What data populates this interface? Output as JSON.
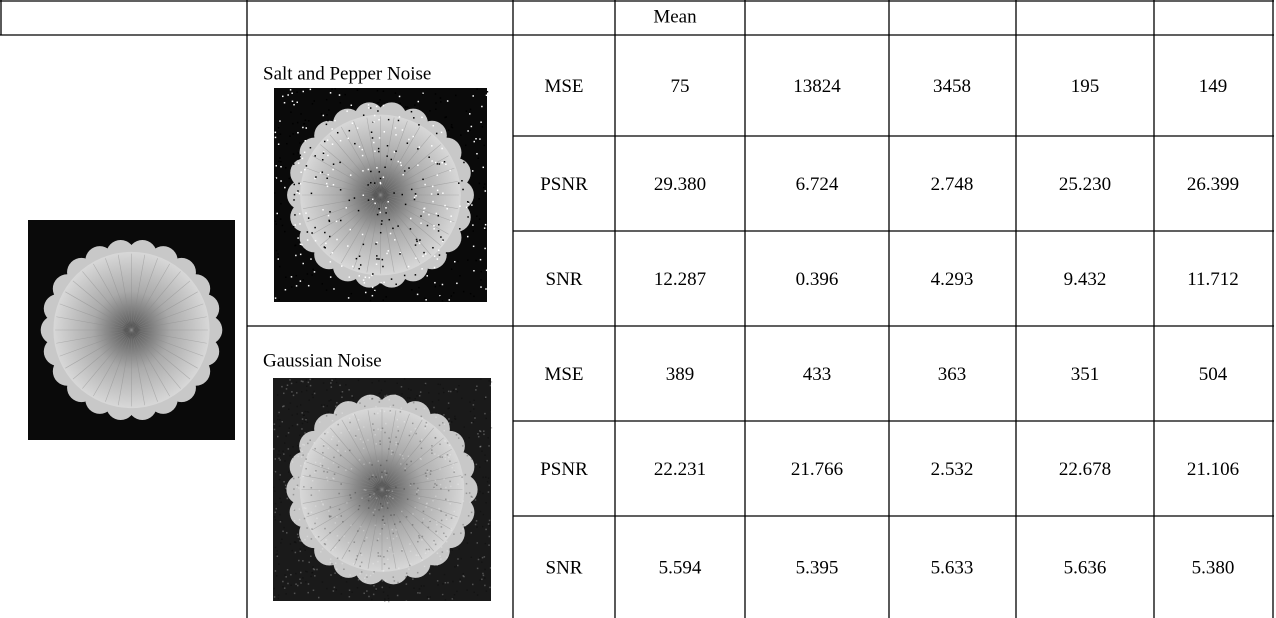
{
  "table": {
    "header_label": "Mean",
    "groups": [
      {
        "label": "Salt and Pepper Noise",
        "rows": [
          {
            "metric": "MSE",
            "values": [
              "75",
              "13824",
              "3458",
              "195",
              "149"
            ]
          },
          {
            "metric": "PSNR",
            "values": [
              "29.380",
              "6.724",
              "2.748",
              "25.230",
              "26.399"
            ]
          },
          {
            "metric": "SNR",
            "values": [
              "12.287",
              "0.396",
              "4.293",
              "9.432",
              "11.712"
            ]
          }
        ]
      },
      {
        "label": "Gaussian Noise",
        "rows": [
          {
            "metric": "MSE",
            "values": [
              "389",
              "433",
              "363",
              "351",
              "504"
            ]
          },
          {
            "metric": "PSNR",
            "values": [
              "22.231",
              "21.766",
              "2.532",
              "22.678",
              "21.106"
            ]
          },
          {
            "metric": "SNR",
            "values": [
              "5.594",
              "5.395",
              "5.633",
              "5.636",
              "5.380"
            ]
          }
        ]
      }
    ]
  }
}
